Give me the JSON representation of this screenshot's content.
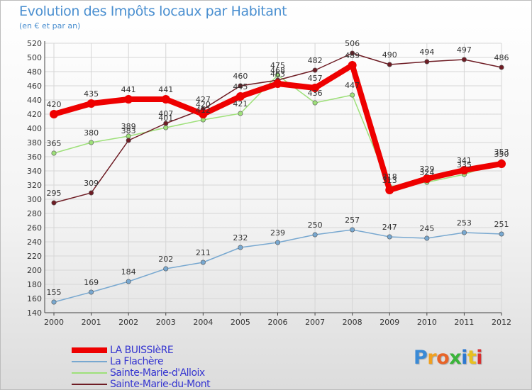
{
  "title": "Evolution des Impôts locaux par Habitant",
  "subtitle": "(en € et par an)",
  "logo": {
    "letters": [
      "P",
      "r",
      "o",
      "x",
      "i",
      "t",
      "i"
    ],
    "colors": [
      "#3a8ad6",
      "#f0a020",
      "#e86428",
      "#3ab43a",
      "#2c78d0",
      "#e8c020",
      "#d83030"
    ]
  },
  "chart_data": {
    "type": "line",
    "title": "Evolution des Impôts locaux par Habitant",
    "subtitle": "(en € et par an)",
    "xlabel": "",
    "ylabel": "",
    "ylim": [
      140,
      520
    ],
    "ytick_step": 20,
    "grid": true,
    "x": [
      "2000",
      "2001",
      "2002",
      "2003",
      "2004",
      "2005",
      "2006",
      "2007",
      "2008",
      "2009",
      "2010",
      "2011",
      "2012"
    ],
    "series": [
      {
        "name": "LA BUISSIèRE",
        "color": "#ee0000",
        "width": "thick",
        "values": [
          420,
          435,
          441,
          441,
          420,
          445,
          463,
          457,
          489,
          313,
          329,
          341,
          350
        ],
        "labels": [
          "420",
          "435",
          "441",
          "441",
          "420",
          "445",
          "463",
          "457",
          "489",
          "313",
          "329",
          "341",
          "350"
        ]
      },
      {
        "name": "La Flachère",
        "color": "#78a8d0",
        "width": "thin",
        "values": [
          155,
          169,
          184,
          202,
          211,
          232,
          239,
          250,
          257,
          247,
          245,
          253,
          251
        ],
        "labels": [
          "155",
          "169",
          "184",
          "202",
          "211",
          "232",
          "239",
          "250",
          "257",
          "247",
          "245",
          "253",
          "251"
        ]
      },
      {
        "name": "Sainte-Marie-d'Alloix",
        "color": "#9ee07a",
        "width": "thin",
        "values": [
          365,
          380,
          389,
          401,
          412,
          421,
          475,
          436,
          447,
          318,
          324,
          335,
          353
        ],
        "labels": [
          "365",
          "380",
          "389",
          "401",
          "412",
          "421",
          "475",
          "436",
          "447",
          "318",
          "324",
          "335",
          "353"
        ]
      },
      {
        "name": "Sainte-Marie-du-Mont",
        "color": "#6e1c24",
        "width": "thin",
        "values": [
          295,
          309,
          383,
          407,
          427,
          460,
          468,
          482,
          506,
          490,
          494,
          497,
          486
        ],
        "labels": [
          "295",
          "309",
          "383",
          "407",
          "427",
          "460",
          "468",
          "482",
          "506",
          "490",
          "494",
          "497",
          "486"
        ]
      }
    ]
  }
}
